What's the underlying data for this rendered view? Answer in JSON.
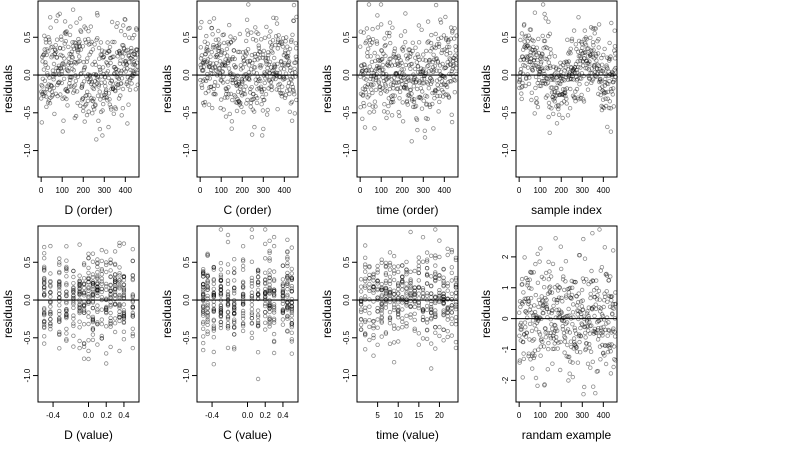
{
  "chart_data": [
    {
      "type": "scatter",
      "title": "",
      "xlabel": "D (order)",
      "ylabel": "residuals",
      "xlim": [
        -15,
        465
      ],
      "ylim": [
        -1.35,
        0.98
      ],
      "xticks": [
        0,
        100,
        200,
        300,
        400
      ],
      "xtick_labels": [
        "0",
        "100",
        "200",
        "300",
        "400"
      ],
      "yticks": [
        -1.0,
        -0.5,
        0.0,
        0.5
      ],
      "ytick_labels": [
        "-1.0",
        "-0.5",
        "0.0",
        "0.5"
      ],
      "hline": 0,
      "grid": false,
      "pattern": "order",
      "seed": 11
    },
    {
      "type": "scatter",
      "title": "",
      "xlabel": "C (order)",
      "ylabel": "residuals",
      "xlim": [
        -15,
        465
      ],
      "ylim": [
        -1.35,
        0.98
      ],
      "xticks": [
        0,
        100,
        200,
        300,
        400
      ],
      "xtick_labels": [
        "0",
        "100",
        "200",
        "300",
        "400"
      ],
      "yticks": [
        -1.0,
        -0.5,
        0.0,
        0.5
      ],
      "ytick_labels": [
        "-1.0",
        "-0.5",
        "0.0",
        "0.5"
      ],
      "hline": 0,
      "grid": false,
      "pattern": "order",
      "seed": 23
    },
    {
      "type": "scatter",
      "title": "",
      "xlabel": "time (order)",
      "ylabel": "residuals",
      "xlim": [
        -15,
        465
      ],
      "ylim": [
        -1.35,
        0.98
      ],
      "xticks": [
        0,
        100,
        200,
        300,
        400
      ],
      "xtick_labels": [
        "0",
        "100",
        "200",
        "300",
        "400"
      ],
      "yticks": [
        -1.0,
        -0.5,
        0.0,
        0.5
      ],
      "ytick_labels": [
        "-1.0",
        "-0.5",
        "0.0",
        "0.5"
      ],
      "hline": 0,
      "grid": false,
      "pattern": "order",
      "seed": 37
    },
    {
      "type": "scatter",
      "title": "",
      "xlabel": "sample index",
      "ylabel": "residuals",
      "xlim": [
        -15,
        465
      ],
      "ylim": [
        -1.35,
        0.98
      ],
      "xticks": [
        0,
        100,
        200,
        300,
        400
      ],
      "xtick_labels": [
        "0",
        "100",
        "200",
        "300",
        "400"
      ],
      "yticks": [
        -1.0,
        -0.5,
        0.0,
        0.5
      ],
      "ytick_labels": [
        "-1.0",
        "-0.5",
        "0.0",
        "0.5"
      ],
      "hline": 0,
      "grid": false,
      "pattern": "wave",
      "seed": 41
    },
    {
      "type": "scatter",
      "title": "",
      "xlabel": "D (value)",
      "ylabel": "residuals",
      "xlim": [
        -0.57,
        0.57
      ],
      "ylim": [
        -1.35,
        0.98
      ],
      "xticks": [
        -0.4,
        0.0,
        0.2,
        0.4
      ],
      "xtick_labels": [
        "-0.4",
        "0.0",
        "0.2",
        "0.4"
      ],
      "yticks": [
        -1.0,
        -0.5,
        0.0,
        0.5
      ],
      "ytick_labels": [
        "-1.0",
        "-0.5",
        "0.0",
        "0.5"
      ],
      "hline": 0,
      "grid": false,
      "pattern": "discrete",
      "levels": [
        -0.5,
        -0.43,
        -0.33,
        -0.25,
        -0.17,
        -0.1,
        -0.05,
        0.0,
        0.05,
        0.1,
        0.15,
        0.2,
        0.25,
        0.3,
        0.35,
        0.4,
        0.5
      ],
      "seed": 53
    },
    {
      "type": "scatter",
      "title": "",
      "xlabel": "C (value)",
      "ylabel": "residuals",
      "xlim": [
        -0.57,
        0.57
      ],
      "ylim": [
        -1.35,
        0.98
      ],
      "xticks": [
        -0.4,
        0.0,
        0.2,
        0.4
      ],
      "xtick_labels": [
        "-0.4",
        "0.0",
        "0.2",
        "0.4"
      ],
      "yticks": [
        -1.0,
        -0.5,
        0.0,
        0.5
      ],
      "ytick_labels": [
        "-1.0",
        "-0.5",
        "0.0",
        "0.5"
      ],
      "hline": 0,
      "grid": false,
      "pattern": "discrete",
      "levels": [
        -0.5,
        -0.45,
        -0.38,
        -0.3,
        -0.22,
        -0.15,
        -0.05,
        0.05,
        0.12,
        0.2,
        0.25,
        0.3,
        0.4,
        0.45,
        0.5
      ],
      "seed": 67
    },
    {
      "type": "scatter",
      "title": "",
      "xlabel": "time (value)",
      "ylabel": "residuals",
      "xlim": [
        0,
        24.5
      ],
      "ylim": [
        -1.35,
        0.98
      ],
      "xticks": [
        5,
        10,
        15,
        20
      ],
      "xtick_labels": [
        "5",
        "10",
        "15",
        "20"
      ],
      "yticks": [
        -1.0,
        -0.5,
        0.0,
        0.5
      ],
      "ytick_labels": [
        "-1.0",
        "-0.5",
        "0.0",
        "0.5"
      ],
      "hline": 0,
      "grid": false,
      "pattern": "discrete",
      "levels": [
        1,
        2,
        3,
        4,
        5,
        6,
        7,
        8,
        9,
        10,
        11,
        12,
        13,
        14,
        15,
        16,
        17,
        18,
        19,
        20,
        21,
        22,
        23,
        24
      ],
      "seed": 79
    },
    {
      "type": "scatter",
      "title": "",
      "xlabel": "randam example",
      "ylabel": "residuals",
      "xlim": [
        -15,
        465
      ],
      "ylim": [
        -2.7,
        3.0
      ],
      "xticks": [
        0,
        100,
        200,
        300,
        400
      ],
      "xtick_labels": [
        "0",
        "100",
        "200",
        "300",
        "400"
      ],
      "yticks": [
        -2,
        -1,
        0,
        1,
        2
      ],
      "ytick_labels": [
        "-2",
        "-1",
        "0",
        "1",
        "2"
      ],
      "hline": 0,
      "grid": false,
      "pattern": "random",
      "seed": 97
    }
  ]
}
